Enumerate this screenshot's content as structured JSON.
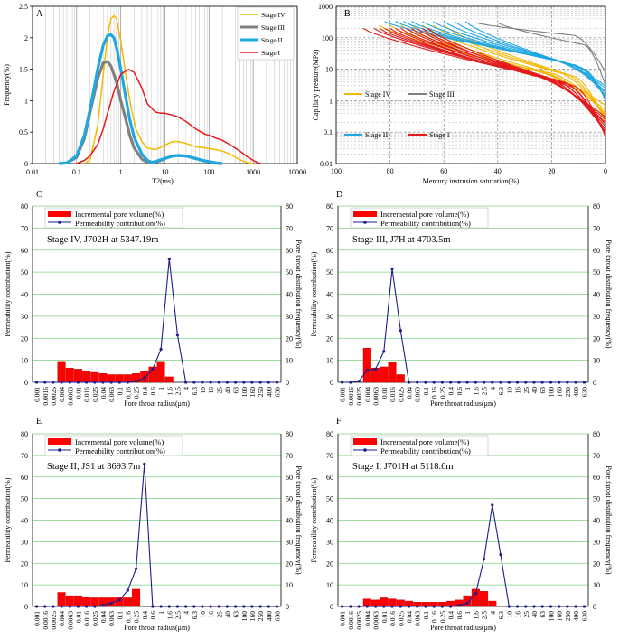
{
  "colors": {
    "stage4": "#f5b800",
    "stage3": "#808080",
    "stage2": "#1ea7e1",
    "stage1": "#e31b1b",
    "bar": "#ff0000",
    "line": "#1c1c8c",
    "grid_green": "#7fd27f"
  },
  "chart_data": [
    {
      "panel": "A",
      "type": "line",
      "xlabel": "T2(ms)",
      "ylabel": "Frequency(%)",
      "xscale": "log",
      "xlim": [
        0.01,
        10000
      ],
      "ylim": [
        0,
        2.5
      ],
      "xticks": [
        0.01,
        0.1,
        1,
        10,
        100,
        1000,
        10000
      ],
      "xtick_labels": [
        "0.01",
        "0.1",
        "1",
        "10",
        "100",
        "1000",
        "10000"
      ],
      "yticks": [
        0,
        0.5,
        1,
        1.5,
        2,
        2.5
      ],
      "ytick_labels": [
        "0",
        "0.5",
        "1",
        "1.5",
        "2",
        "2.5"
      ],
      "legend": [
        "Stage IV",
        "Stage III",
        "Stage II",
        "Stage I"
      ],
      "series": [
        {
          "name": "Stage IV",
          "color_key": "stage4",
          "x": [
            0.15,
            0.2,
            0.3,
            0.4,
            0.5,
            0.6,
            0.7,
            0.8,
            1,
            1.3,
            1.7,
            2.2,
            3,
            4,
            6,
            8,
            12,
            15,
            20,
            30,
            50,
            80,
            100,
            150,
            200,
            300,
            400,
            500,
            700,
            1000
          ],
          "y": [
            0,
            0.05,
            0.6,
            1.4,
            2.05,
            2.3,
            2.35,
            2.3,
            1.95,
            1.4,
            0.9,
            0.55,
            0.35,
            0.25,
            0.22,
            0.26,
            0.32,
            0.35,
            0.35,
            0.32,
            0.27,
            0.25,
            0.24,
            0.22,
            0.2,
            0.15,
            0.1,
            0.06,
            0.02,
            0
          ]
        },
        {
          "name": "Stage III",
          "color_key": "stage3",
          "x": [
            0.04,
            0.06,
            0.1,
            0.15,
            0.2,
            0.3,
            0.4,
            0.5,
            0.6,
            0.8,
            1,
            1.3,
            1.6,
            2,
            3,
            4,
            5,
            6,
            8,
            10,
            15,
            20,
            30,
            50,
            70,
            100,
            130,
            180
          ],
          "y": [
            0,
            0.01,
            0.1,
            0.4,
            0.8,
            1.35,
            1.6,
            1.62,
            1.55,
            1.3,
            1.0,
            0.7,
            0.45,
            0.25,
            0.07,
            0.02,
            0.01,
            0.02,
            0.05,
            0.08,
            0.12,
            0.13,
            0.12,
            0.08,
            0.05,
            0.03,
            0.01,
            0
          ]
        },
        {
          "name": "Stage II",
          "color_key": "stage2",
          "x": [
            0.04,
            0.06,
            0.1,
            0.15,
            0.2,
            0.3,
            0.4,
            0.5,
            0.6,
            0.7,
            0.8,
            1,
            1.3,
            1.6,
            2,
            3,
            4,
            5,
            6,
            8,
            10,
            15,
            20,
            30,
            50,
            70,
            100,
            150,
            200
          ],
          "y": [
            0,
            0.01,
            0.12,
            0.45,
            0.85,
            1.5,
            1.88,
            2.03,
            2.05,
            2.0,
            1.85,
            1.5,
            1.05,
            0.7,
            0.42,
            0.15,
            0.05,
            0.02,
            0.03,
            0.06,
            0.08,
            0.12,
            0.13,
            0.12,
            0.08,
            0.05,
            0.03,
            0.01,
            0
          ]
        },
        {
          "name": "Stage I",
          "color_key": "stage1",
          "x": [
            0.1,
            0.15,
            0.2,
            0.3,
            0.4,
            0.5,
            0.7,
            1,
            1.5,
            2,
            3,
            4,
            6,
            8,
            10,
            15,
            20,
            30,
            50,
            80,
            100,
            150,
            200,
            300,
            500,
            700,
            1000,
            1300,
            1500
          ],
          "y": [
            0,
            0.05,
            0.12,
            0.3,
            0.55,
            0.8,
            1.15,
            1.42,
            1.5,
            1.45,
            1.2,
            0.95,
            0.82,
            0.8,
            0.8,
            0.77,
            0.74,
            0.67,
            0.55,
            0.47,
            0.45,
            0.4,
            0.37,
            0.3,
            0.2,
            0.12,
            0.05,
            0.01,
            0
          ]
        }
      ]
    },
    {
      "panel": "B",
      "type": "line",
      "xlabel": "Mercury instrusion saturation(%)",
      "ylabel": "Capillary pressure(MPa)",
      "yscale": "log",
      "xlim": [
        100,
        0
      ],
      "ylim": [
        0.01,
        1000
      ],
      "xticks": [
        100,
        80,
        60,
        40,
        20,
        0
      ],
      "xtick_labels": [
        "100",
        "80",
        "60",
        "40",
        "20",
        "0"
      ],
      "yticks": [
        0.01,
        0.1,
        1,
        10,
        100,
        1000
      ],
      "ytick_labels": [
        "0.01",
        "0.1",
        "1",
        "10",
        "100",
        "1000"
      ],
      "legend": [
        "Stage IV",
        "Stage III",
        "Stage II",
        "Stage I"
      ],
      "groups": [
        {
          "name": "Stage IV",
          "color_key": "stage4",
          "s_start": [
            84,
            80,
            76,
            72,
            68,
            64,
            60
          ],
          "p_start": 250,
          "s_knee": [
            33,
            30,
            26,
            22,
            18,
            15,
            12
          ],
          "p_knee": [
            12,
            10,
            9,
            8,
            8,
            7,
            6
          ],
          "p_end": [
            0.7,
            0.5,
            0.4,
            0.35,
            0.3,
            0.25,
            0.2
          ]
        },
        {
          "name": "Stage III",
          "color_key": "stage3",
          "s_start": [
            48,
            40
          ],
          "p_start": 300,
          "s_knee": [
            12,
            8
          ],
          "p_knee": [
            120,
            60
          ],
          "p_end": [
            8,
            3
          ]
        },
        {
          "name": "Stage II",
          "color_key": "stage2",
          "s_start": [
            82,
            78,
            75,
            72,
            68,
            64,
            60,
            56,
            52
          ],
          "p_start": 330,
          "s_knee": [
            28,
            25,
            22,
            20,
            18,
            15,
            12,
            10,
            8
          ],
          "p_knee": [
            30,
            25,
            22,
            20,
            18,
            16,
            14,
            12,
            10
          ],
          "p_end": [
            3,
            2.5,
            2,
            1.8,
            1.5,
            1.3,
            1.2,
            1.1,
            1
          ]
        },
        {
          "name": "Stage I",
          "color_key": "stage1",
          "s_start": [
            90,
            86,
            84,
            82,
            80,
            78,
            76,
            74,
            72,
            70,
            68,
            66
          ],
          "p_start": 200,
          "s_knee": [
            36,
            33,
            30,
            28,
            26,
            24,
            22,
            20,
            18,
            16,
            14,
            12
          ],
          "p_knee": [
            10,
            9,
            8,
            7,
            6,
            6,
            5,
            5,
            4,
            4,
            3,
            3
          ],
          "p_end": [
            0.3,
            0.25,
            0.2,
            0.18,
            0.15,
            0.12,
            0.1,
            0.1,
            0.09,
            0.08,
            0.08,
            0.07
          ]
        }
      ]
    },
    {
      "panel": "C",
      "type": "bar+line",
      "title": "Stage IV, J702H at  5347.19m",
      "categories": [
        "0.001",
        "0.0016",
        "0.0025",
        "0.004",
        "0.0063",
        "0.01",
        "0.016",
        "0.025",
        "0.04",
        "0.063",
        "0.1",
        "0.16",
        "0.25",
        "0.4",
        "0.6",
        "1",
        "1.6",
        "2.5",
        "4",
        "6.3",
        "10",
        "16",
        "25",
        "40",
        "63",
        "100",
        "160",
        "250",
        "400",
        "630"
      ],
      "bar_values": [
        0,
        0,
        0,
        9.5,
        6.5,
        6,
        5,
        4.5,
        4,
        3.5,
        3.5,
        3.5,
        4,
        5,
        7,
        9.5,
        2.5,
        0,
        0,
        0,
        0,
        0,
        0,
        0,
        0,
        0,
        0,
        0,
        0,
        0
      ],
      "line_values": [
        0,
        0,
        0,
        0,
        0,
        0,
        0,
        0,
        0,
        0,
        0,
        0,
        0.5,
        2,
        6,
        15,
        56,
        21.5,
        0,
        0,
        0,
        0,
        0,
        0,
        0,
        0,
        0,
        0,
        0,
        0
      ],
      "ylim": [
        0,
        80
      ],
      "xlabel": "Pore throat radius(μm)",
      "ylabel_left": "Permeability contribution(%)",
      "ylabel_right": "Pore throat distribution frequency(%)",
      "legend": [
        "Incremental pore volume(%)",
        "Permeability contribution(%)"
      ]
    },
    {
      "panel": "D",
      "type": "bar+line",
      "title": "Stage III, J7H at  4703.5m",
      "categories": [
        "0.001",
        "0.0016",
        "0.0025",
        "0.004",
        "0.0063",
        "0.01",
        "0.016",
        "0.025",
        "0.04",
        "0.063",
        "0.1",
        "0.16",
        "0.25",
        "0.4",
        "0.6",
        "1",
        "1.6",
        "2.5",
        "4",
        "6.3",
        "10",
        "16",
        "25",
        "40",
        "63",
        "100",
        "160",
        "250",
        "400",
        "630"
      ],
      "bar_values": [
        0,
        0,
        0,
        15.5,
        6.5,
        7,
        9,
        3.5,
        0,
        0,
        0,
        0,
        0,
        0,
        0,
        0,
        0,
        0,
        0,
        0,
        0,
        0,
        0,
        0,
        0,
        0,
        0,
        0,
        0,
        0
      ],
      "line_values": [
        0,
        0,
        0.5,
        5.5,
        6,
        14,
        51.5,
        23.5,
        0,
        0,
        0,
        0,
        0,
        0,
        0,
        0,
        0,
        0,
        0,
        0,
        0,
        0,
        0,
        0,
        0,
        0,
        0,
        0,
        0,
        0
      ],
      "ylim": [
        0,
        80
      ],
      "xlabel": "Pore throat radius(μm)",
      "ylabel_left": "Permeability contribution(%)",
      "ylabel_right": "Pore throat distribution frequency(%)",
      "legend": [
        "Incremental pore volume(%)",
        "Permeability contribution(%)"
      ]
    },
    {
      "panel": "E",
      "type": "bar+line",
      "title": "Stage II, JS1 at  3693.7m",
      "categories": [
        "0.001",
        "0.0016",
        "0.0025",
        "0.004",
        "0.0063",
        "0.01",
        "0.016",
        "0.025",
        "0.04",
        "0.063",
        "0.1",
        "0.16",
        "0.25",
        "0.4",
        "0.6",
        "1",
        "1.6",
        "2.5",
        "4",
        "6.3",
        "10",
        "16",
        "25",
        "40",
        "63",
        "100",
        "160",
        "250",
        "400",
        "630"
      ],
      "bar_values": [
        0,
        0,
        0,
        6.5,
        5,
        5,
        4.5,
        4,
        4,
        4,
        4.5,
        4,
        8,
        0,
        0,
        0,
        0,
        0,
        0,
        0,
        0,
        0,
        0,
        0,
        0,
        0,
        0,
        0,
        0,
        0
      ],
      "line_values": [
        0,
        0,
        0,
        0,
        0,
        0,
        0,
        0,
        0.5,
        1.5,
        3,
        7.5,
        17.5,
        66,
        0,
        0,
        0,
        0,
        0,
        0,
        0,
        0,
        0,
        0,
        0,
        0,
        0,
        0,
        0,
        0
      ],
      "ylim": [
        0,
        80
      ],
      "xlabel": "Pore throat radius(μm)",
      "ylabel_left": "Permeability contribution(%)",
      "ylabel_right": "Pore throat distribution frequency(%)",
      "legend": [
        "Incremental pore volume(%)",
        "Permeability contribution(%)"
      ]
    },
    {
      "panel": "F",
      "type": "bar+line",
      "title": "Stage I, J701H at  5118.6m",
      "categories": [
        "0.001",
        "0.0016",
        "0.0025",
        "0.004",
        "0.0063",
        "0.01",
        "0.016",
        "0.025",
        "0.04",
        "0.063",
        "0.1",
        "0.16",
        "0.25",
        "0.4",
        "0.6",
        "1",
        "1.6",
        "2.5",
        "4",
        "6.3",
        "10",
        "16",
        "25",
        "40",
        "63",
        "100",
        "160",
        "250",
        "400",
        "630"
      ],
      "bar_values": [
        0,
        0,
        0,
        3.5,
        3,
        4,
        3.5,
        3,
        2.5,
        2,
        2,
        2,
        2,
        2.5,
        3,
        5,
        8,
        7,
        2.5,
        0,
        0,
        0,
        0,
        0,
        0,
        0,
        0,
        0,
        0,
        0
      ],
      "line_values": [
        0,
        0,
        0,
        0,
        0,
        0,
        0,
        0,
        0,
        0,
        0,
        0,
        0,
        0,
        0.5,
        1.5,
        6,
        22,
        47,
        24,
        0,
        0,
        0,
        0,
        0,
        0,
        0,
        0,
        0,
        0
      ],
      "ylim": [
        0,
        80
      ],
      "xlabel": "Pore throat radius(μm)",
      "ylabel_left": "Permeability contribution(%)",
      "ylabel_right": "Pore throat distribution frequency(%)",
      "legend": [
        "Incremental pore volume(%)",
        "Permeability contribution(%)"
      ]
    }
  ]
}
